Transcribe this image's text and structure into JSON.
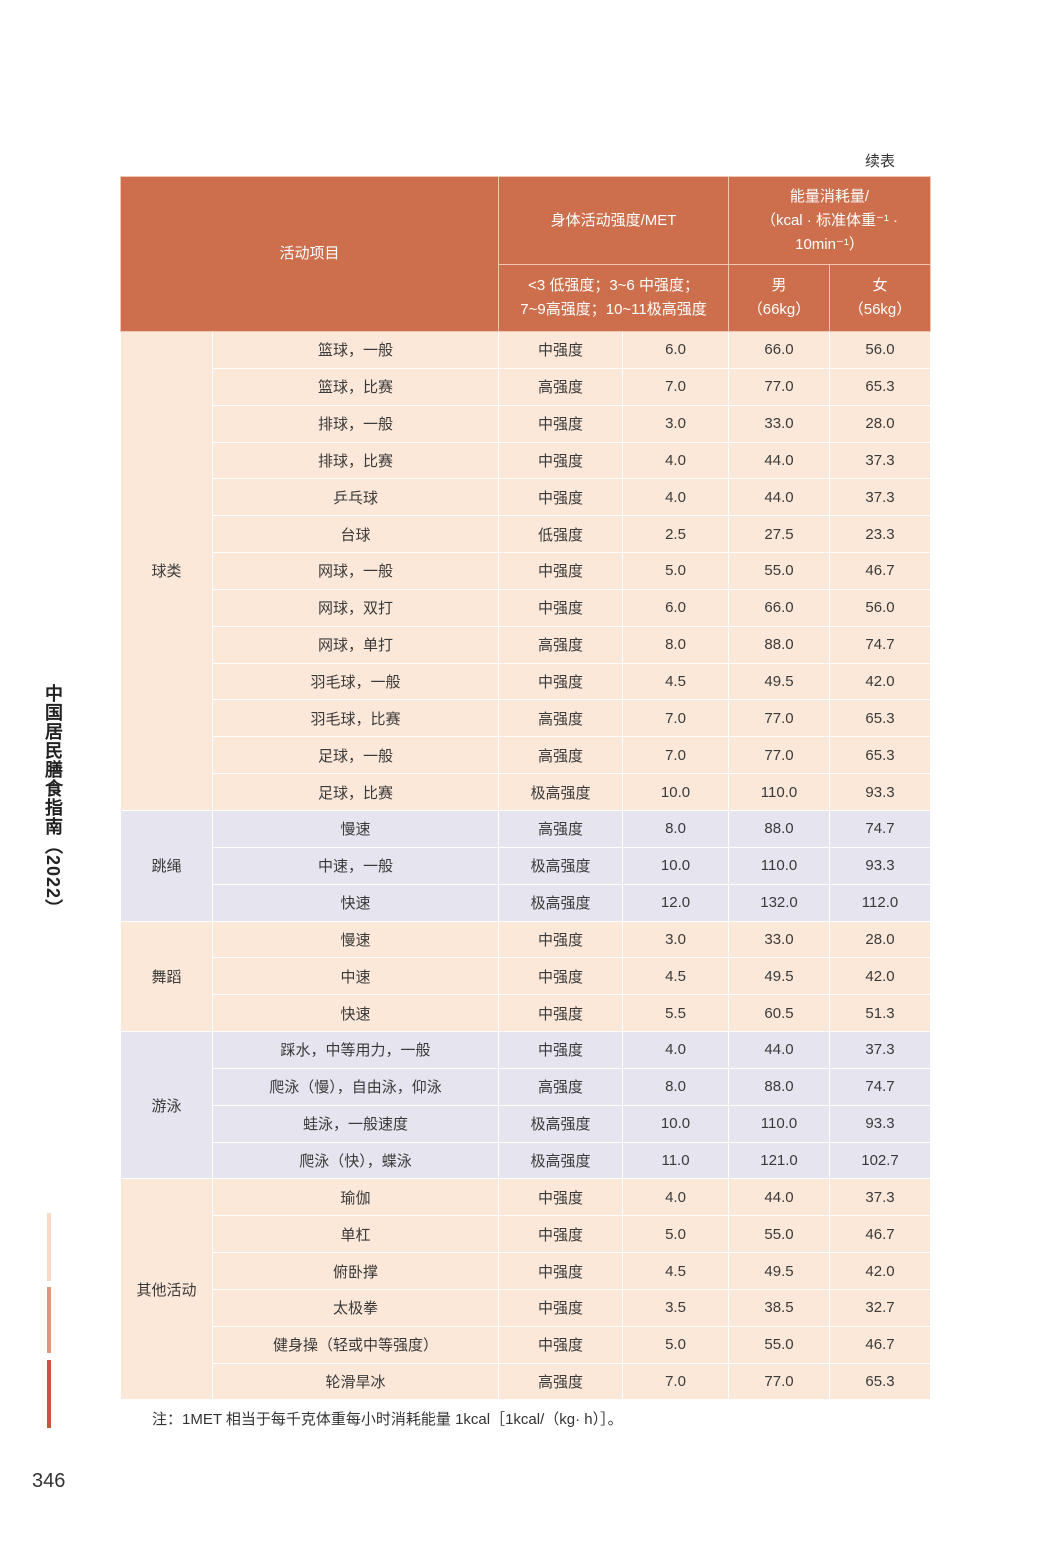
{
  "continued_label": "续表",
  "header": {
    "activity": "活动项目",
    "met_group": "身体活动强度/MET",
    "met_scale_line1": "<3 低强度；3~6 中强度；",
    "met_scale_line2": "7~9高强度；10~11极高强度",
    "energy_line1": "能量消耗量/",
    "energy_line2": "（kcal · 标准体重⁻¹ ·",
    "energy_line3": "10min⁻¹）",
    "male_line1": "男",
    "male_line2": "（66kg）",
    "female_line1": "女",
    "female_line2": "（56kg）"
  },
  "groups": [
    {
      "category": "球类",
      "rows": [
        {
          "activity": "篮球，一般",
          "intensity": "中强度",
          "met": "6.0",
          "male": "66.0",
          "female": "56.0"
        },
        {
          "activity": "篮球，比赛",
          "intensity": "高强度",
          "met": "7.0",
          "male": "77.0",
          "female": "65.3"
        },
        {
          "activity": "排球，一般",
          "intensity": "中强度",
          "met": "3.0",
          "male": "33.0",
          "female": "28.0"
        },
        {
          "activity": "排球，比赛",
          "intensity": "中强度",
          "met": "4.0",
          "male": "44.0",
          "female": "37.3"
        },
        {
          "activity": "乒乓球",
          "intensity": "中强度",
          "met": "4.0",
          "male": "44.0",
          "female": "37.3"
        },
        {
          "activity": "台球",
          "intensity": "低强度",
          "met": "2.5",
          "male": "27.5",
          "female": "23.3"
        },
        {
          "activity": "网球，一般",
          "intensity": "中强度",
          "met": "5.0",
          "male": "55.0",
          "female": "46.7"
        },
        {
          "activity": "网球，双打",
          "intensity": "中强度",
          "met": "6.0",
          "male": "66.0",
          "female": "56.0"
        },
        {
          "activity": "网球，单打",
          "intensity": "高强度",
          "met": "8.0",
          "male": "88.0",
          "female": "74.7"
        },
        {
          "activity": "羽毛球，一般",
          "intensity": "中强度",
          "met": "4.5",
          "male": "49.5",
          "female": "42.0"
        },
        {
          "activity": "羽毛球，比赛",
          "intensity": "高强度",
          "met": "7.0",
          "male": "77.0",
          "female": "65.3"
        },
        {
          "activity": "足球，一般",
          "intensity": "高强度",
          "met": "7.0",
          "male": "77.0",
          "female": "65.3"
        },
        {
          "activity": "足球，比赛",
          "intensity": "极高强度",
          "met": "10.0",
          "male": "110.0",
          "female": "93.3"
        }
      ]
    },
    {
      "category": "跳绳",
      "rows": [
        {
          "activity": "慢速",
          "intensity": "高强度",
          "met": "8.0",
          "male": "88.0",
          "female": "74.7"
        },
        {
          "activity": "中速，一般",
          "intensity": "极高强度",
          "met": "10.0",
          "male": "110.0",
          "female": "93.3"
        },
        {
          "activity": "快速",
          "intensity": "极高强度",
          "met": "12.0",
          "male": "132.0",
          "female": "112.0"
        }
      ]
    },
    {
      "category": "舞蹈",
      "rows": [
        {
          "activity": "慢速",
          "intensity": "中强度",
          "met": "3.0",
          "male": "33.0",
          "female": "28.0"
        },
        {
          "activity": "中速",
          "intensity": "中强度",
          "met": "4.5",
          "male": "49.5",
          "female": "42.0"
        },
        {
          "activity": "快速",
          "intensity": "中强度",
          "met": "5.5",
          "male": "60.5",
          "female": "51.3"
        }
      ]
    },
    {
      "category": "游泳",
      "rows": [
        {
          "activity": "踩水，中等用力，一般",
          "intensity": "中强度",
          "met": "4.0",
          "male": "44.0",
          "female": "37.3"
        },
        {
          "activity": "爬泳（慢），自由泳，仰泳",
          "intensity": "高强度",
          "met": "8.0",
          "male": "88.0",
          "female": "74.7"
        },
        {
          "activity": "蛙泳，一般速度",
          "intensity": "极高强度",
          "met": "10.0",
          "male": "110.0",
          "female": "93.3"
        },
        {
          "activity": "爬泳（快），蝶泳",
          "intensity": "极高强度",
          "met": "11.0",
          "male": "121.0",
          "female": "102.7"
        }
      ]
    },
    {
      "category": "其他活动",
      "rows": [
        {
          "activity": "瑜伽",
          "intensity": "中强度",
          "met": "4.0",
          "male": "44.0",
          "female": "37.3"
        },
        {
          "activity": "单杠",
          "intensity": "中强度",
          "met": "5.0",
          "male": "55.0",
          "female": "46.7"
        },
        {
          "activity": "俯卧撑",
          "intensity": "中强度",
          "met": "4.5",
          "male": "49.5",
          "female": "42.0"
        },
        {
          "activity": "太极拳",
          "intensity": "中强度",
          "met": "3.5",
          "male": "38.5",
          "female": "32.7"
        },
        {
          "activity": "健身操（轻或中等强度）",
          "intensity": "中强度",
          "met": "5.0",
          "male": "55.0",
          "female": "46.7"
        },
        {
          "activity": "轮滑旱冰",
          "intensity": "高强度",
          "met": "7.0",
          "male": "77.0",
          "female": "65.3"
        }
      ]
    }
  ],
  "note": "注：1MET 相当于每千克体重每小时消耗能量 1kcal［1kcal/（kg· h）］。",
  "side_title": "中国居民膳食指南（2022）",
  "page_number": "346",
  "colors": {
    "header": "#cd6f4d",
    "peach_row": "#fbe8d9",
    "lavender_row": "#e6e4ef"
  }
}
